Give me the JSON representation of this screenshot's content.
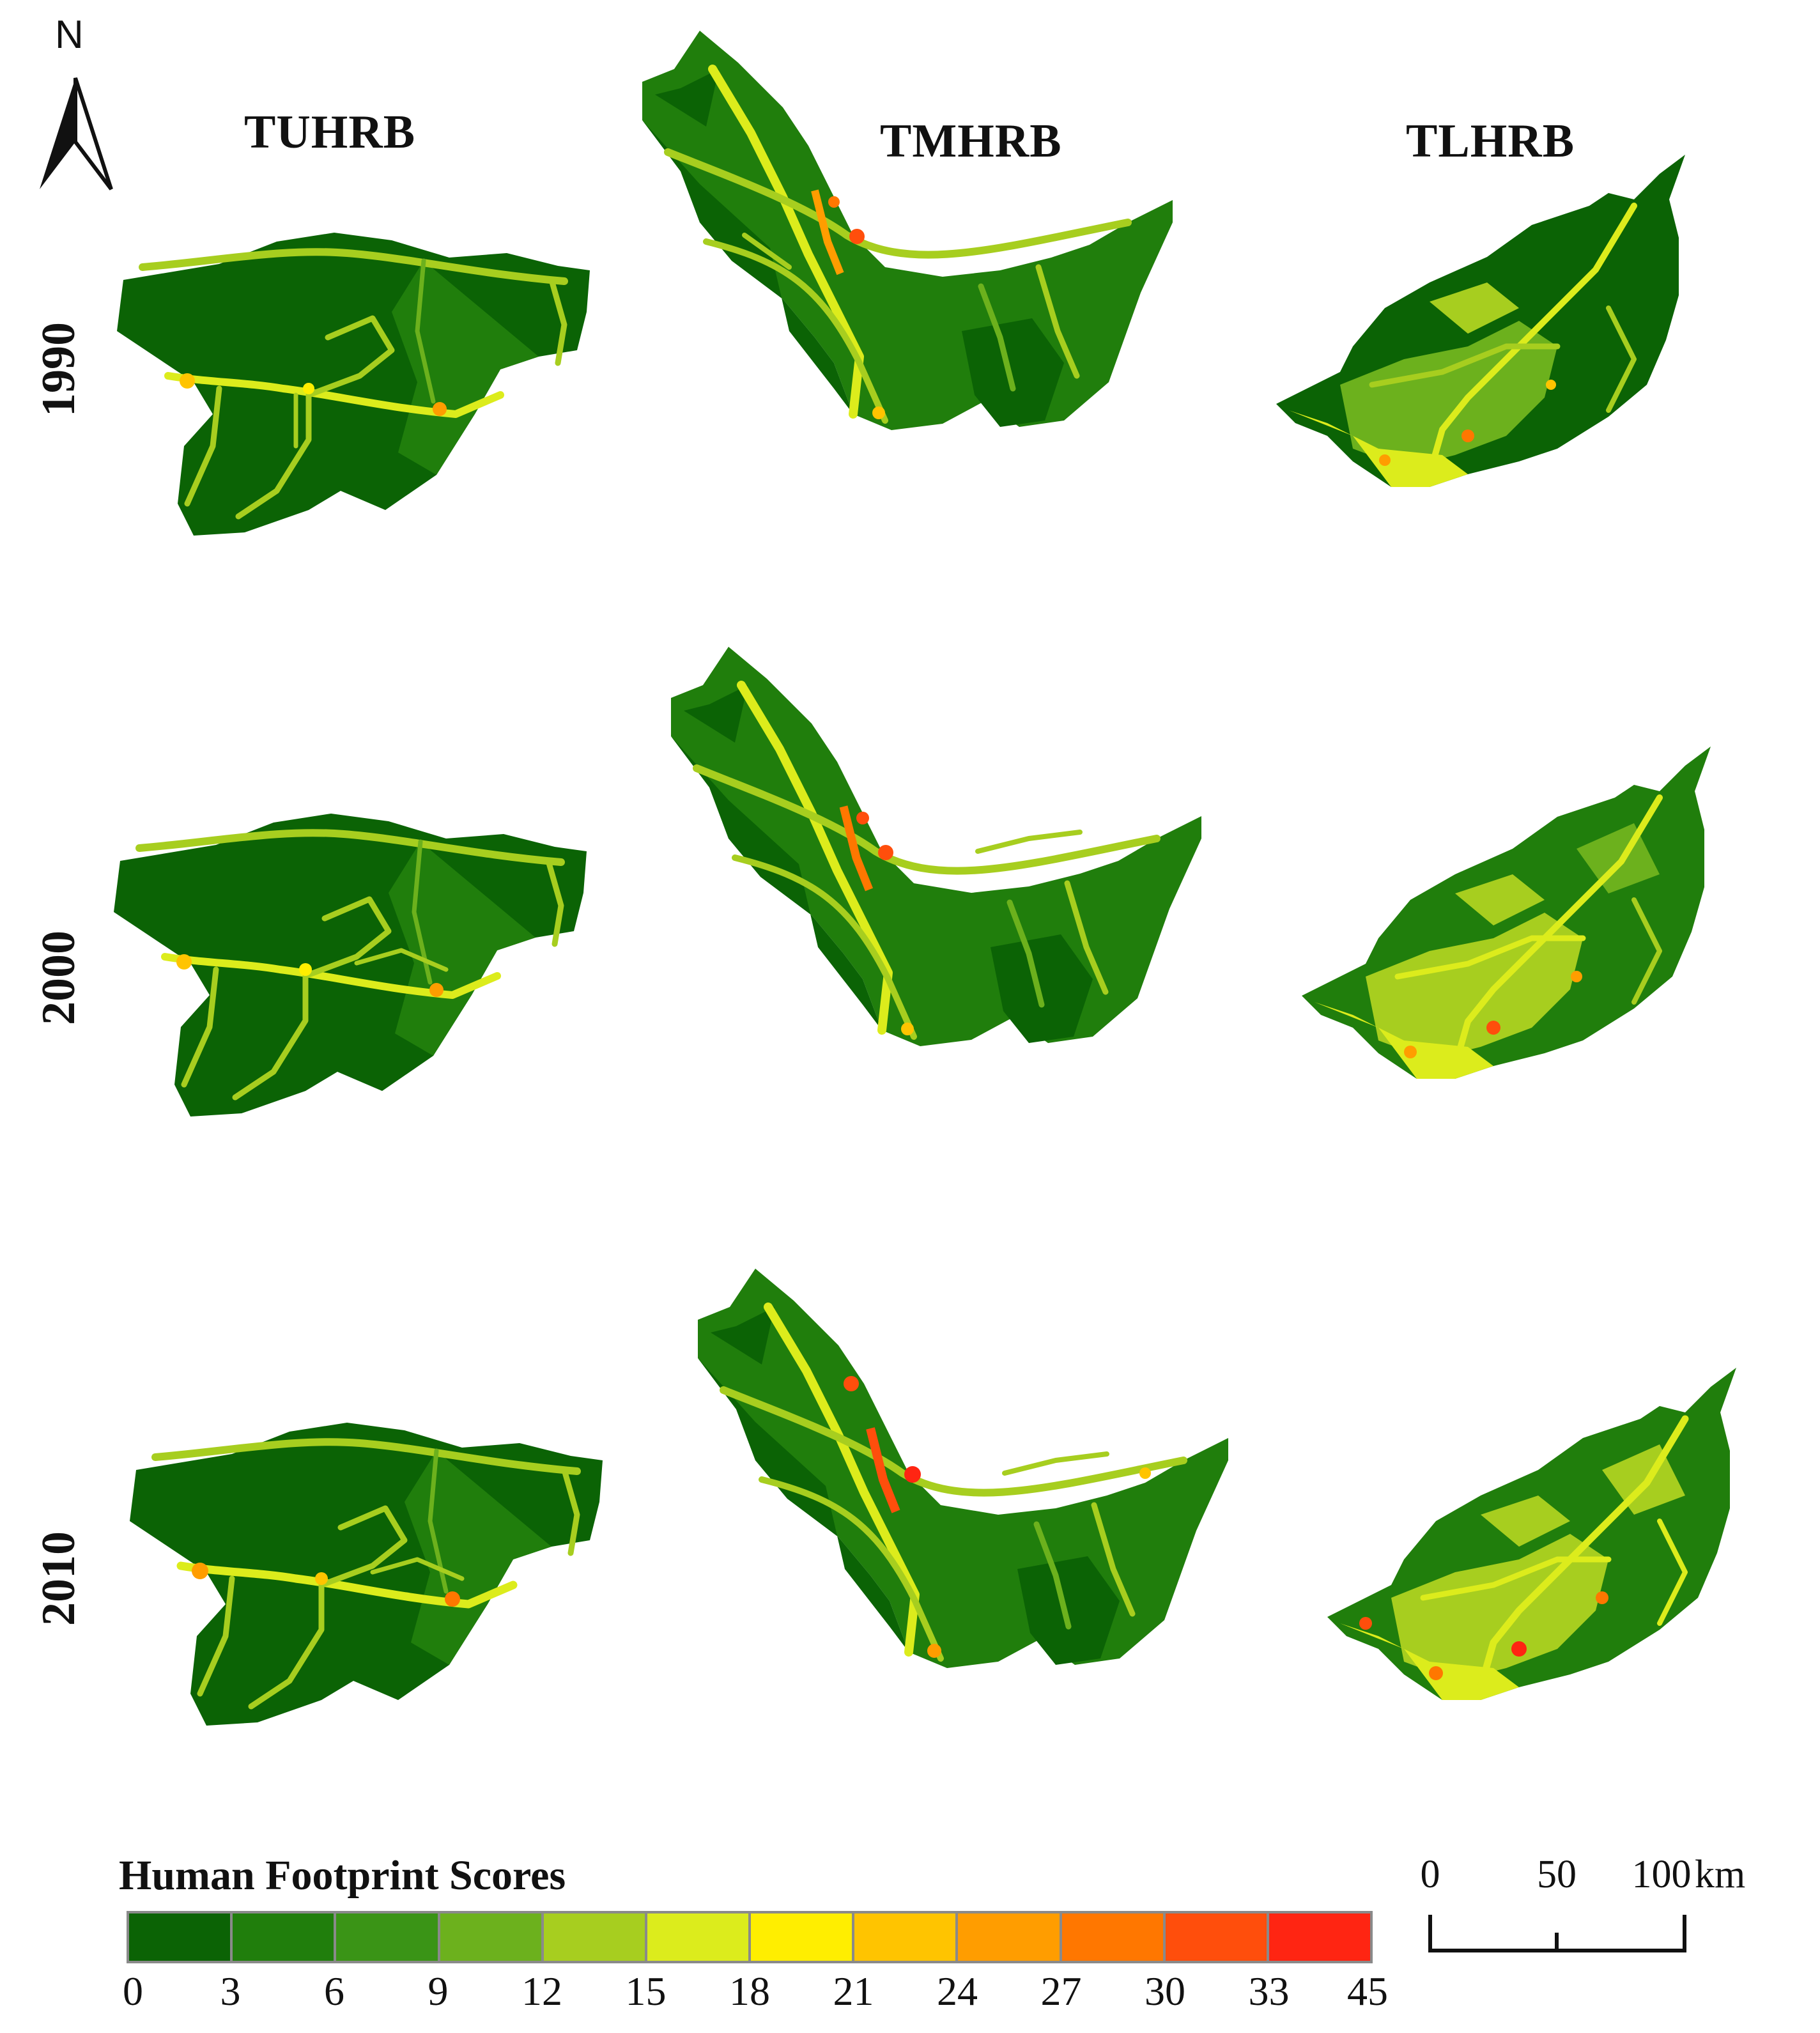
{
  "map": {
    "north_arrow": {
      "letter": "N",
      "icon": "north-arrow-icon"
    },
    "column_titles": [
      "TUHRB",
      "TMHRB",
      "TLHRB"
    ],
    "row_labels": [
      "1990",
      "2000",
      "2010"
    ],
    "legend": {
      "title": "Human Footprint Scores",
      "breaks": [
        "0",
        "3",
        "6",
        "9",
        "12",
        "15",
        "18",
        "21",
        "24",
        "27",
        "30",
        "33",
        "45"
      ],
      "classes": [
        {
          "range": [
            0,
            3
          ],
          "color": "#0b6305"
        },
        {
          "range": [
            3,
            6
          ],
          "color": "#207e0c"
        },
        {
          "range": [
            6,
            9
          ],
          "color": "#3a9416"
        },
        {
          "range": [
            9,
            12
          ],
          "color": "#6cb11d"
        },
        {
          "range": [
            12,
            15
          ],
          "color": "#a7ce1f"
        },
        {
          "range": [
            15,
            18
          ],
          "color": "#dcec1c"
        },
        {
          "range": [
            18,
            21
          ],
          "color": "#ffee00"
        },
        {
          "range": [
            21,
            24
          ],
          "color": "#ffc400"
        },
        {
          "range": [
            24,
            27
          ],
          "color": "#ff9d00"
        },
        {
          "range": [
            27,
            30
          ],
          "color": "#ff7700"
        },
        {
          "range": [
            30,
            33
          ],
          "color": "#ff4e0c"
        },
        {
          "range": [
            33,
            45
          ],
          "color": "#ff2512"
        }
      ]
    },
    "scale_bar": {
      "labels": [
        "0",
        "50",
        "100"
      ],
      "unit": "km"
    },
    "colors": {
      "base_dark": "#0b6305",
      "base_medium": "#207e0c",
      "corridor": "#a7ce1f",
      "corridor_bright": "#dcec1c",
      "hotspot": "#ff4e0c"
    }
  }
}
